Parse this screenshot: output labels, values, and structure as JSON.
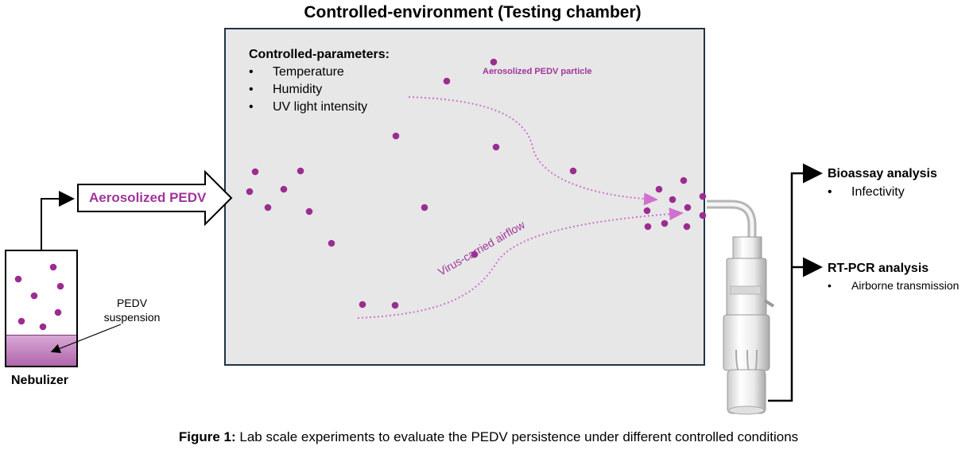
{
  "title": "Controlled-environment (Testing chamber)",
  "parameters": {
    "heading": "Controlled-parameters:",
    "items": [
      "Temperature",
      "Humidity",
      "UV light intensity"
    ]
  },
  "labels": {
    "aerosolized_particle": "Aerosolized PEDV particle",
    "airflow": "Virus-carried airflow",
    "aerosolized_pedv": "Aerosolized PEDV",
    "nebulizer": "Nebulizer",
    "suspension": "PEDV suspension"
  },
  "analysis": {
    "bioassay": {
      "title": "Bioassay analysis",
      "item": "Infectivity"
    },
    "rtpcr": {
      "title": "RT-PCR analysis",
      "item": "Airborne transmission"
    }
  },
  "caption": {
    "prefix": "Figure 1:",
    "text": "Lab scale experiments to evaluate the PEDV persistence under different controlled conditions"
  },
  "colors": {
    "particle": "#9b2d91",
    "chamber_fill": "#e7e7e7",
    "chamber_border": "#1f3446",
    "accent_text": "#a0359a"
  }
}
